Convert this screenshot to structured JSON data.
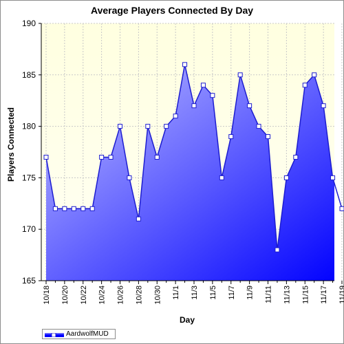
{
  "chart_data": {
    "type": "area",
    "title": "Average Players Connected By Day",
    "xlabel": "Day",
    "ylabel": "Players Connected",
    "ylim": [
      165,
      190
    ],
    "yticks": [
      165,
      170,
      175,
      180,
      185,
      190
    ],
    "grid": "dashed",
    "legend_position": "bottom-left",
    "x": [
      "10/18",
      "10/19",
      "10/20",
      "10/21",
      "10/22",
      "10/23",
      "10/24",
      "10/25",
      "10/26",
      "10/27",
      "10/28",
      "10/29",
      "10/30",
      "10/31",
      "11/1",
      "11/2",
      "11/3",
      "11/4",
      "11/5",
      "11/6",
      "11/7",
      "11/8",
      "11/9",
      "11/10",
      "11/11",
      "11/12",
      "11/13",
      "11/14",
      "11/15",
      "11/16",
      "11/17",
      "11/18",
      "11/19"
    ],
    "tick_labels": [
      "10/18",
      "10/20",
      "10/22",
      "10/24",
      "10/26",
      "10/28",
      "10/30",
      "11/1",
      "11/3",
      "11/5",
      "11/7",
      "11/9",
      "11/11",
      "11/13",
      "11/15",
      "11/17",
      "11/19"
    ],
    "series": [
      {
        "name": "AardwolfMUD",
        "values": [
          177,
          172,
          172,
          172,
          172,
          172,
          177,
          177,
          180,
          175,
          171,
          180,
          177,
          180,
          181,
          186,
          182,
          184,
          183,
          175,
          179,
          185,
          182,
          180,
          179,
          168,
          175,
          177,
          184,
          185,
          182,
          175,
          172
        ]
      }
    ],
    "colors": {
      "plot_bg_top": "#ffffe0",
      "plot_bg_bottom": "#fffff4",
      "fill_top_left": "#c4c4ff",
      "fill_bottom_right": "#0000ff",
      "line": "#1c1cd0",
      "marker_fill": "#ffffff"
    }
  }
}
